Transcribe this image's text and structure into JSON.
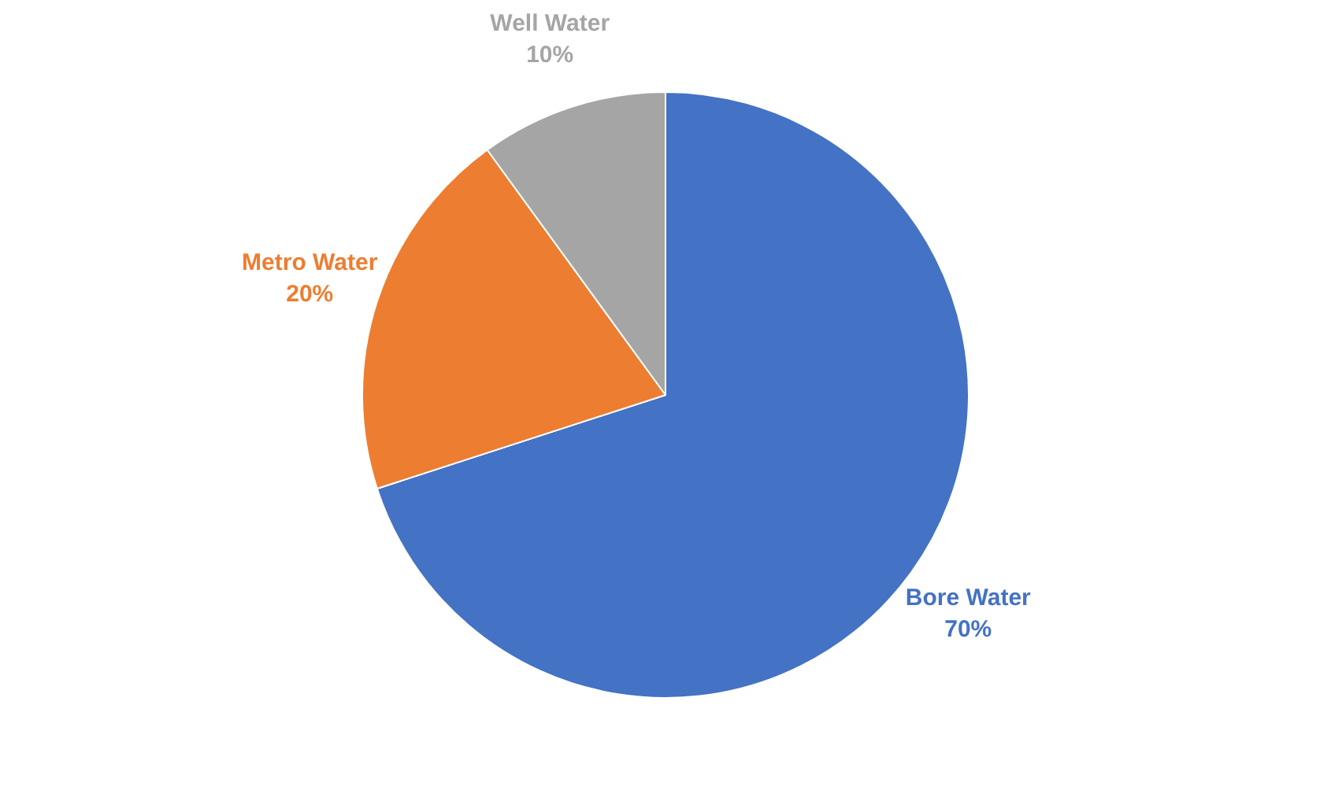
{
  "chart_data": {
    "type": "pie",
    "categories": [
      "Bore Water",
      "Metro Water",
      "Well Water"
    ],
    "values": [
      70,
      20,
      10
    ],
    "colors": [
      "#4472c4",
      "#ed7d31",
      "#a5a5a5"
    ],
    "value_labels": [
      "70%",
      "20%",
      "10%"
    ],
    "legend": false
  }
}
